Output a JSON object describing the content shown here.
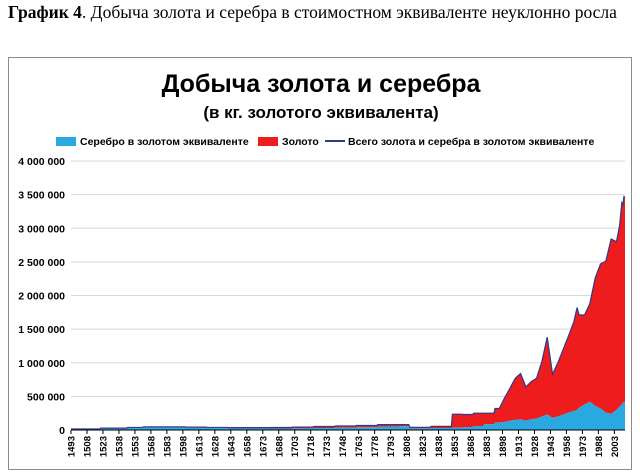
{
  "caption": {
    "prefix": "График 4",
    "text": ". Добыча золота и серебра в стоимостном эквиваленте неуклонно росла"
  },
  "chart_data": {
    "type": "area",
    "title": "Добыча золота и серебра",
    "subtitle": "(в кг. золотого эквивалента)",
    "xlabel": "",
    "ylabel": "",
    "ylim": [
      0,
      4000000
    ],
    "yticks": [
      0,
      500000,
      1000000,
      1500000,
      2000000,
      2500000,
      3000000,
      3500000,
      4000000
    ],
    "ytick_labels": [
      "0",
      "500 000",
      "1 000 000",
      "1 500 000",
      "2 000 000",
      "2 500 000",
      "3 000 000",
      "3 500 000",
      "4 000 000"
    ],
    "xlim": [
      1493,
      2013
    ],
    "xtick_labels": [
      "1493",
      "1508",
      "1523",
      "1538",
      "1553",
      "1568",
      "1583",
      "1598",
      "1613",
      "1628",
      "1643",
      "1658",
      "1673",
      "1688",
      "1703",
      "1718",
      "1733",
      "1748",
      "1763",
      "1778",
      "1793",
      "1808",
      "1823",
      "1838",
      "1853",
      "1868",
      "1883",
      "1898",
      "1913",
      "1928",
      "1943",
      "1958",
      "1973",
      "1988",
      "2003"
    ],
    "grid": true,
    "legend_position": "top",
    "colors": {
      "silver": "#29a9e0",
      "gold": "#ee1c1c",
      "total": "#2e3a8c",
      "grid": "#d9d9d9"
    },
    "series": [
      {
        "name": "Серебро в золотом эквиваленте",
        "kind": "area",
        "x": [
          1493,
          1520,
          1521,
          1545,
          1546,
          1560,
          1561,
          1600,
          1601,
          1620,
          1621,
          1640,
          1641,
          1680,
          1681,
          1700,
          1701,
          1720,
          1721,
          1740,
          1741,
          1760,
          1761,
          1780,
          1781,
          1800,
          1801,
          1810,
          1811,
          1830,
          1831,
          1850,
          1851,
          1860,
          1861,
          1870,
          1871,
          1880,
          1881,
          1890,
          1891,
          1895,
          1900,
          1905,
          1910,
          1915,
          1920,
          1925,
          1930,
          1935,
          1940,
          1945,
          1950,
          1955,
          1960,
          1965,
          1968,
          1970,
          1975,
          1980,
          1985,
          1990,
          1995,
          2000,
          2005,
          2008,
          2010,
          2011,
          2012,
          2013
        ],
        "values": [
          10000,
          10000,
          20000,
          20000,
          28000,
          28000,
          35000,
          35000,
          32000,
          32000,
          28000,
          28000,
          25000,
          25000,
          22000,
          22000,
          24000,
          24000,
          30000,
          30000,
          35000,
          35000,
          40000,
          40000,
          50000,
          50000,
          55000,
          55000,
          25000,
          25000,
          30000,
          30000,
          35000,
          35000,
          45000,
          45000,
          60000,
          60000,
          85000,
          85000,
          110000,
          110000,
          120000,
          140000,
          150000,
          160000,
          140000,
          160000,
          170000,
          200000,
          230000,
          180000,
          200000,
          230000,
          260000,
          280000,
          300000,
          330000,
          380000,
          420000,
          360000,
          320000,
          260000,
          240000,
          300000,
          350000,
          380000,
          400000,
          420000,
          410000
        ]
      },
      {
        "name": "Золото",
        "kind": "area",
        "x": [
          1493,
          1520,
          1521,
          1545,
          1546,
          1560,
          1561,
          1600,
          1601,
          1620,
          1621,
          1640,
          1641,
          1680,
          1681,
          1700,
          1701,
          1720,
          1721,
          1740,
          1741,
          1760,
          1761,
          1780,
          1781,
          1800,
          1801,
          1810,
          1811,
          1830,
          1831,
          1850,
          1851,
          1860,
          1861,
          1870,
          1871,
          1880,
          1881,
          1890,
          1891,
          1895,
          1900,
          1905,
          1910,
          1915,
          1920,
          1925,
          1930,
          1935,
          1940,
          1945,
          1950,
          1955,
          1960,
          1965,
          1968,
          1970,
          1975,
          1980,
          1985,
          1990,
          1995,
          2000,
          2005,
          2008,
          2010,
          2011,
          2012,
          2013
        ],
        "values": [
          5000,
          5000,
          8000,
          8000,
          10000,
          10000,
          12000,
          12000,
          12000,
          12000,
          10000,
          10000,
          10000,
          10000,
          15000,
          15000,
          20000,
          20000,
          22000,
          22000,
          25000,
          25000,
          28000,
          28000,
          30000,
          30000,
          25000,
          25000,
          15000,
          15000,
          25000,
          25000,
          200000,
          200000,
          185000,
          185000,
          190000,
          190000,
          165000,
          165000,
          210000,
          210000,
          360000,
          480000,
          620000,
          680000,
          500000,
          560000,
          600000,
          820000,
          1150000,
          650000,
          800000,
          970000,
          1140000,
          1330000,
          1520000,
          1380000,
          1330000,
          1460000,
          1900000,
          2150000,
          2250000,
          2600000,
          2500000,
          2700000,
          3000000,
          2950000,
          3050000,
          3050000
        ]
      },
      {
        "name": "Всего золота и серебра в золотом эквиваленте",
        "kind": "line",
        "x": [
          1493,
          1520,
          1521,
          1545,
          1546,
          1560,
          1561,
          1600,
          1601,
          1620,
          1621,
          1640,
          1641,
          1680,
          1681,
          1700,
          1701,
          1720,
          1721,
          1740,
          1741,
          1760,
          1761,
          1780,
          1781,
          1800,
          1801,
          1810,
          1811,
          1830,
          1831,
          1850,
          1851,
          1860,
          1861,
          1870,
          1871,
          1880,
          1881,
          1890,
          1891,
          1895,
          1900,
          1905,
          1910,
          1915,
          1920,
          1925,
          1930,
          1935,
          1940,
          1945,
          1950,
          1955,
          1960,
          1965,
          1968,
          1970,
          1975,
          1980,
          1985,
          1990,
          1995,
          2000,
          2005,
          2008,
          2010,
          2011,
          2012,
          2013
        ],
        "values": [
          15000,
          15000,
          28000,
          28000,
          38000,
          38000,
          47000,
          47000,
          44000,
          44000,
          38000,
          38000,
          35000,
          35000,
          37000,
          37000,
          44000,
          44000,
          52000,
          52000,
          60000,
          60000,
          68000,
          68000,
          80000,
          80000,
          80000,
          80000,
          40000,
          40000,
          55000,
          55000,
          235000,
          235000,
          230000,
          230000,
          250000,
          250000,
          250000,
          250000,
          320000,
          320000,
          480000,
          620000,
          770000,
          840000,
          640000,
          720000,
          770000,
          1020000,
          1380000,
          830000,
          1000000,
          1200000,
          1400000,
          1610000,
          1820000,
          1710000,
          1710000,
          1880000,
          2260000,
          2470000,
          2510000,
          2840000,
          2800000,
          3050000,
          3380000,
          3350000,
          3470000,
          3460000
        ]
      }
    ]
  }
}
